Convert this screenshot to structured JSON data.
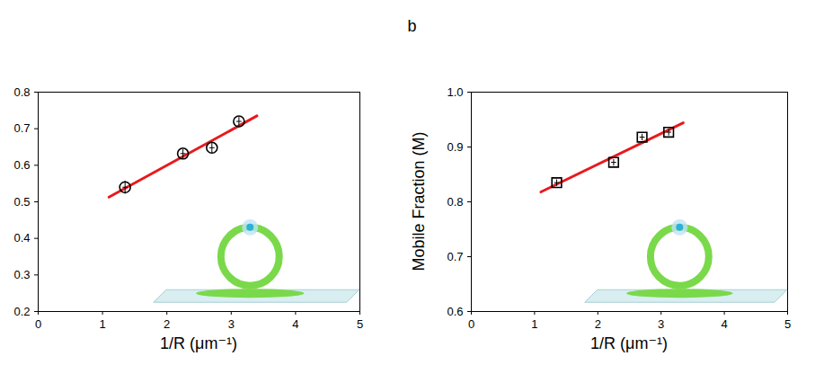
{
  "panel_label": "b",
  "chart_data": [
    {
      "type": "scatter",
      "x_label": "1/R (μm⁻¹)",
      "x": [
        1.35,
        2.25,
        2.7,
        3.12
      ],
      "values": [
        0.54,
        0.632,
        0.648,
        0.72
      ],
      "x_error": [
        0.04,
        0.04,
        0.04,
        0.04
      ],
      "y_error": [
        0.018,
        0.012,
        0.014,
        0.012
      ],
      "fit": {
        "x": [
          1.1,
          3.4
        ],
        "y": [
          0.513,
          0.735
        ],
        "color": "#e8191c"
      },
      "color": "#000000",
      "marker": "circle",
      "xlim": [
        0,
        5
      ],
      "xticks": [
        0,
        1,
        2,
        3,
        4,
        5
      ],
      "ylim": [
        0.2,
        0.8
      ],
      "yticks": [
        0.2,
        0.3,
        0.4,
        0.5,
        0.6,
        0.7,
        0.8
      ],
      "grid": false
    },
    {
      "type": "scatter",
      "x_label": "1/R (μm⁻¹)",
      "y_label": "Mobile Fraction (M)",
      "x": [
        1.35,
        2.25,
        2.7,
        3.12
      ],
      "values": [
        0.835,
        0.872,
        0.918,
        0.927
      ],
      "x_error": [
        0.04,
        0.04,
        0.04,
        0.04
      ],
      "y_error": [
        0.006,
        0.006,
        0.006,
        0.006
      ],
      "fit": {
        "x": [
          1.1,
          3.35
        ],
        "y": [
          0.818,
          0.944
        ],
        "color": "#e8191c"
      },
      "color": "#000000",
      "marker": "square",
      "xlim": [
        0,
        5
      ],
      "xticks": [
        0,
        1,
        2,
        3,
        4,
        5
      ],
      "ylim": [
        0.6,
        1.0
      ],
      "yticks": [
        0.6,
        0.7,
        0.8,
        0.9,
        {
          "value": 1.0,
          "label": "1.0"
        }
      ],
      "grid": false
    }
  ]
}
